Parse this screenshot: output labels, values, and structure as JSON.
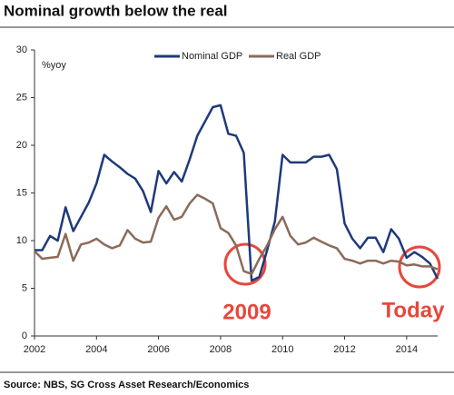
{
  "chart_data": {
    "type": "line",
    "title": "Nominal growth below the real",
    "y_label": "%yoy",
    "source": "Source: NBS, SG Cross Asset Research/Economics",
    "annotations": [
      "2009",
      "Today"
    ],
    "x": [
      2002,
      2002.25,
      2002.5,
      2002.75,
      2003,
      2003.25,
      2003.5,
      2003.75,
      2004,
      2004.25,
      2004.5,
      2004.75,
      2005,
      2005.25,
      2005.5,
      2005.75,
      2006,
      2006.25,
      2006.5,
      2006.75,
      2007,
      2007.25,
      2007.5,
      2007.75,
      2008,
      2008.25,
      2008.5,
      2008.75,
      2009,
      2009.25,
      2009.5,
      2009.75,
      2010,
      2010.25,
      2010.5,
      2010.75,
      2011,
      2011.25,
      2011.5,
      2011.75,
      2012,
      2012.25,
      2012.5,
      2012.75,
      2013,
      2013.25,
      2013.5,
      2013.75,
      2014,
      2014.25,
      2014.5,
      2014.75,
      2015
    ],
    "series": [
      {
        "name": "Nominal GDP",
        "color": "#1f3a7a",
        "values": [
          9,
          9,
          10.5,
          10,
          13.5,
          11,
          12.5,
          14,
          16,
          19,
          18.3,
          17.7,
          17,
          16.5,
          15.2,
          13,
          17.3,
          16,
          17.2,
          16.2,
          18.5,
          21,
          22.5,
          24,
          24.2,
          21.2,
          21,
          19.2,
          5.8,
          6.2,
          9,
          12,
          19,
          18.2,
          18.2,
          18.2,
          18.8,
          18.8,
          19,
          17.5,
          11.8,
          10.2,
          9.2,
          10.3,
          10.3,
          8.8,
          11.2,
          10.2,
          8.2,
          8.8,
          8.3,
          7.6,
          6
        ]
      },
      {
        "name": "Real GDP",
        "color": "#8b6a5a",
        "values": [
          8.9,
          8.1,
          8.2,
          8.3,
          10.7,
          7.9,
          9.6,
          9.8,
          10.2,
          9.6,
          9.2,
          9.5,
          11.1,
          10.2,
          9.8,
          9.9,
          12.4,
          13.6,
          12.2,
          12.5,
          13.9,
          14.8,
          14.4,
          13.9,
          11.3,
          10.8,
          9.5,
          6.8,
          6.5,
          8.1,
          9.5,
          11.2,
          12.5,
          10.5,
          9.6,
          9.8,
          10.3,
          9.9,
          9.5,
          9.2,
          8.1,
          7.9,
          7.6,
          7.9,
          7.9,
          7.6,
          7.9,
          7.8,
          7.4,
          7.5,
          7.3,
          7.3,
          7.0
        ]
      }
    ],
    "xlim": [
      2002,
      2015
    ],
    "xticks": [
      2002,
      2004,
      2006,
      2008,
      2010,
      2012,
      2014
    ],
    "ylim": [
      0,
      30
    ],
    "yticks": [
      0,
      5,
      10,
      15,
      20,
      25,
      30
    ]
  }
}
